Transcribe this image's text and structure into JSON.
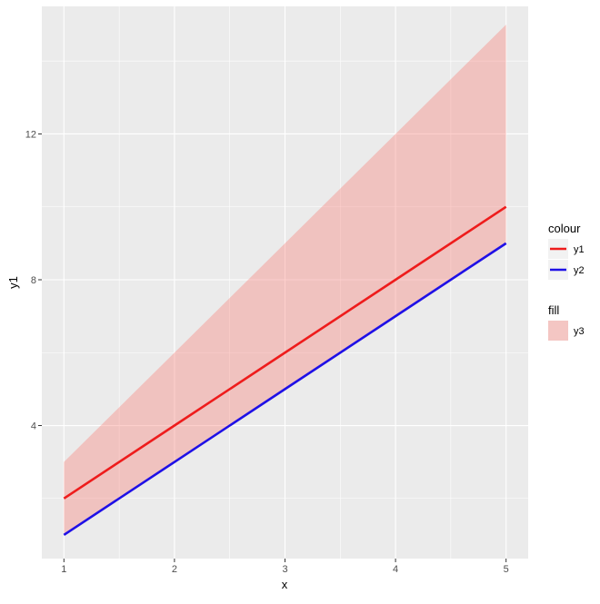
{
  "chart_data": {
    "type": "line",
    "xlabel": "x",
    "ylabel": "y1",
    "x": [
      1,
      2,
      3,
      4,
      5
    ],
    "xlim": [
      0.8,
      5.2
    ],
    "ylim": [
      0.35,
      15.5
    ],
    "x_ticks": [
      1,
      2,
      3,
      4,
      5
    ],
    "y_ticks": [
      4,
      8,
      12
    ],
    "grid": true,
    "series": [
      {
        "name": "y1",
        "kind": "line",
        "values": [
          2,
          4,
          6,
          8,
          10
        ],
        "color": "#ee1c1c"
      },
      {
        "name": "y2",
        "kind": "line",
        "values": [
          1,
          3,
          5,
          7,
          9
        ],
        "color": "#1f10e6"
      }
    ],
    "ribbon": {
      "name": "y3",
      "ymin": [
        1,
        3,
        5,
        7,
        9
      ],
      "ymax": [
        3,
        6,
        9,
        12,
        15
      ],
      "color": "#f8766d",
      "opacity": 0.35
    },
    "legend": {
      "placement": "right",
      "groups": [
        {
          "title": "colour",
          "items": [
            {
              "label": "y1",
              "color": "#ee1c1c",
              "kind": "line"
            },
            {
              "label": "y2",
              "color": "#1f10e6",
              "kind": "line"
            }
          ]
        },
        {
          "title": "fill",
          "items": [
            {
              "label": "y3",
              "color": "#f8766d",
              "kind": "fill"
            }
          ]
        }
      ]
    },
    "colors": {
      "panel": "#ebebeb",
      "grid_major": "#ffffff"
    }
  }
}
